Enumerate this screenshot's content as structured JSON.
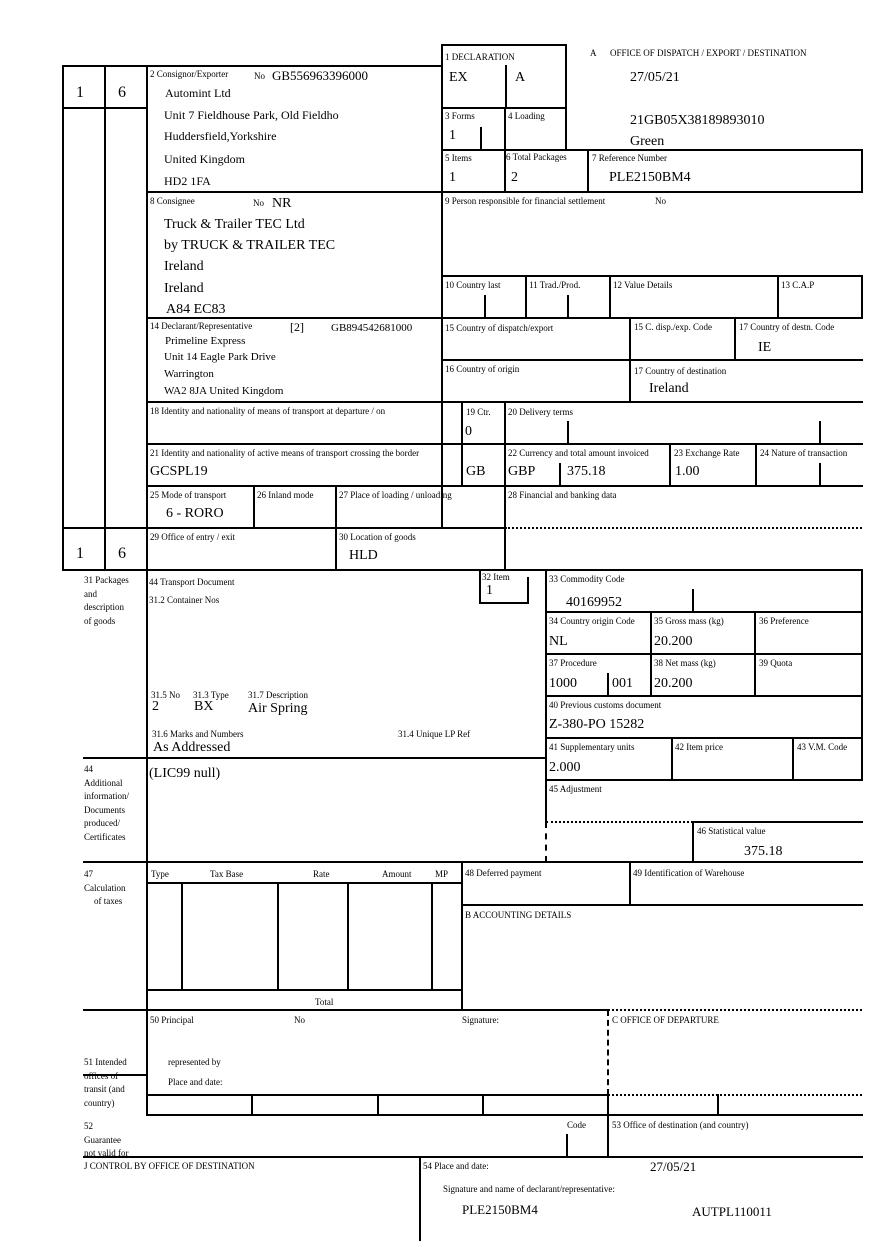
{
  "copy_numbers": {
    "top_left": "1",
    "top_right": "6",
    "bottom_left": "1",
    "bottom_right": "6"
  },
  "box1": {
    "label": "1 DECLARATION",
    "type": "EX",
    "sub": "A"
  },
  "office": {
    "letter": "A",
    "title": "OFFICE OF DISPATCH / EXPORT / DESTINATION",
    "date": "27/05/21",
    "mrn": "21GB05X38189893010",
    "route": "Green"
  },
  "box2": {
    "label": "2 Consignor/Exporter",
    "no_label": "No",
    "no": "GB556963396000",
    "lines": [
      "Automint Ltd",
      "Unit 7 Fieldhouse Park, Old Fieldho",
      "Huddersfield,Yorkshire",
      "United Kingdom",
      "HD2 1FA"
    ]
  },
  "box3": {
    "label": "3 Forms",
    "value": "1"
  },
  "box4": {
    "label": "4 Loading"
  },
  "box5": {
    "label": "5 Items",
    "value": "1"
  },
  "box6": {
    "label": "6 Total Packages",
    "value": "2"
  },
  "box7": {
    "label": "7 Reference Number",
    "value": "PLE2150BM4"
  },
  "box8": {
    "label": "8 Consignee",
    "no_label": "No",
    "no": "NR",
    "lines": [
      "Truck & Trailer TEC Ltd",
      "by TRUCK & TRAILER TEC",
      "Ireland",
      "Ireland",
      "A84 EC83"
    ]
  },
  "box9": {
    "label": "9 Person responsible for financial settlement",
    "no_label": "No"
  },
  "box10": {
    "label": "10 Country last"
  },
  "box11": {
    "label": "11 Trad./Prod."
  },
  "box12": {
    "label": "12 Value Details"
  },
  "box13": {
    "label": "13 C.A.P"
  },
  "box14": {
    "label": "14 Declarant/Representative",
    "code": "[2]",
    "no": "GB894542681000",
    "lines": [
      "Primeline Express",
      "Unit 14 Eagle Park Drive",
      "Warrington",
      "WA2 8JA United Kingdom"
    ]
  },
  "box15": {
    "label": "15 Country of dispatch/export"
  },
  "box15a": {
    "label": "15 C. disp./exp. Code"
  },
  "box17a": {
    "label": "17 Country of destn. Code",
    "value": "IE"
  },
  "box16": {
    "label": "16 Country of origin"
  },
  "box17": {
    "label": "17 Country of destination",
    "value": "Ireland"
  },
  "box18": {
    "label": "18 Identity and nationality of means of transport at departure / on"
  },
  "box19": {
    "label": "19 Ctr.",
    "value": "0"
  },
  "box20": {
    "label": "20 Delivery terms"
  },
  "box21": {
    "label": "21 Identity and nationality of active means of transport crossing the border",
    "value": "GCSPL19",
    "nationality": "GB"
  },
  "box22": {
    "label": "22 Currency and total amount invoiced",
    "currency": "GBP",
    "amount": "375.18"
  },
  "box23": {
    "label": "23 Exchange Rate",
    "value": "1.00"
  },
  "box24": {
    "label": "24 Nature of transaction"
  },
  "box25": {
    "label": "25 Mode of transport",
    "value": "6 - RORO"
  },
  "box26": {
    "label": "26 Inland mode"
  },
  "box27": {
    "label": "27 Place of loading / unloading"
  },
  "box28": {
    "label": "28 Financial and banking data"
  },
  "box29": {
    "label": "29 Office of entry / exit"
  },
  "box30": {
    "label": "30 Location of goods",
    "value": "HLD"
  },
  "box31": {
    "side_label": [
      "31 Packages",
      "and",
      "description",
      "of goods"
    ],
    "transport_doc": "44 Transport Document",
    "container": "31.2 Container Nos",
    "no_label": "31.5 No",
    "no": "2",
    "type_label": "31.3 Type",
    "type": "BX",
    "desc_label": "31.7 Description",
    "desc": "Air Spring",
    "marks_label": "31.6 Marks and Numbers",
    "marks": "As Addressed",
    "lp_label": "31.4 Unique LP Ref"
  },
  "box32": {
    "label": "32 Item",
    "value": "1"
  },
  "box33": {
    "label": "33 Commodity Code",
    "value": "40169952"
  },
  "box34": {
    "label": "34 Country origin Code",
    "value": "NL"
  },
  "box35": {
    "label": "35 Gross mass (kg)",
    "value": "20.200"
  },
  "box36": {
    "label": "36 Preference"
  },
  "box37": {
    "label": "37 Procedure",
    "value": "1000",
    "sub": "001"
  },
  "box38": {
    "label": "38 Net mass (kg)",
    "value": "20.200"
  },
  "box39": {
    "label": "39 Quota"
  },
  "box40": {
    "label": "40 Previous customs document",
    "value": "Z-380-PO 15282"
  },
  "box41": {
    "label": "41 Supplementary units",
    "value": "2.000"
  },
  "box42": {
    "label": "42 Item price"
  },
  "box43": {
    "label": "43 V.M. Code"
  },
  "box44": {
    "side_label": [
      "44",
      "Additional",
      "information/",
      "Documents",
      "produced/",
      "Certificates"
    ],
    "value": "(LIC99 null)"
  },
  "box45": {
    "label": "45 Adjustment"
  },
  "box46": {
    "label": "46 Statistical value",
    "value": "375.18"
  },
  "box47": {
    "side_label": [
      "47",
      "Calculation",
      "of taxes"
    ],
    "headers": [
      "Type",
      "Tax Base",
      "Rate",
      "Amount",
      "MP"
    ],
    "total_label": "Total"
  },
  "box48": {
    "label": "48 Deferred payment"
  },
  "box49": {
    "label": "49 Identification of Warehouse"
  },
  "boxB": {
    "label": "B ACCOUNTING DETAILS"
  },
  "box50": {
    "label": "50 Principal",
    "no_label": "No",
    "signature_label": "Signature:",
    "represented_by": "represented by",
    "place_date": "Place and date:"
  },
  "boxC": {
    "label": "C OFFICE OF DEPARTURE"
  },
  "box51": {
    "side_label": [
      "51 Intended",
      "offices of",
      "transit (and",
      "country)"
    ]
  },
  "box52": {
    "side_label": [
      "52",
      "Guarantee",
      "not valid for"
    ],
    "code_label": "Code"
  },
  "box53": {
    "label": "53 Office of destination (and country)"
  },
  "boxJ": {
    "label": "J CONTROL BY OFFICE OF DESTINATION"
  },
  "box54": {
    "label": "54 Place and date:",
    "date": "27/05/21",
    "signature_label": "Signature and name of declarant/representative:",
    "name": "PLE2150BM4",
    "ref": "AUTPL110011"
  }
}
